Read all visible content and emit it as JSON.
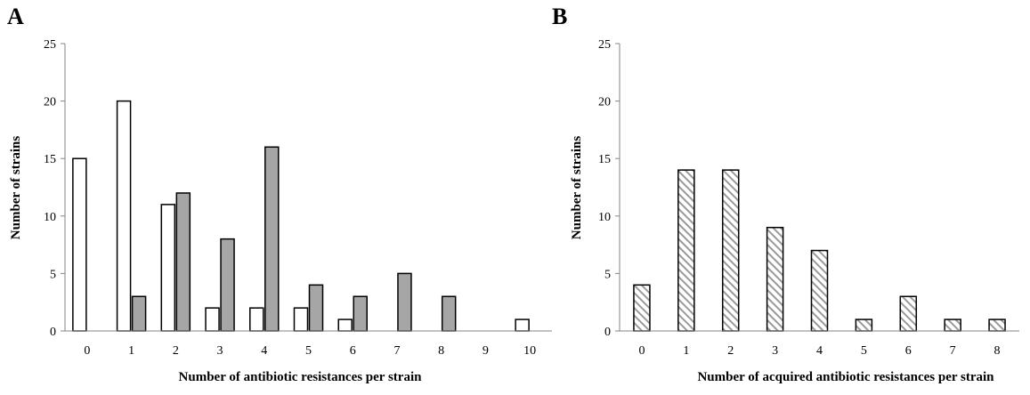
{
  "chart_data": [
    {
      "panel_label": "A",
      "type": "bar",
      "xlabel": "Number of antibiotic resistances per strain",
      "ylabel": "Number of strains",
      "categories": [
        "0",
        "1",
        "2",
        "3",
        "4",
        "5",
        "6",
        "7",
        "8",
        "9",
        "10"
      ],
      "ylim": [
        0,
        25
      ],
      "yticks": [
        "0",
        "5",
        "10",
        "15",
        "20",
        "25"
      ],
      "series": [
        {
          "values": [
            15,
            20,
            11,
            2,
            2,
            2,
            1,
            0,
            0,
            0,
            1
          ],
          "fill": "#ffffff",
          "pattern": "solid"
        },
        {
          "values": [
            0,
            3,
            12,
            8,
            16,
            4,
            3,
            5,
            3,
            0,
            0
          ],
          "fill": "#a6a6a6",
          "pattern": "solid"
        }
      ],
      "grid": false
    },
    {
      "panel_label": "B",
      "type": "bar",
      "xlabel": "Number of acquired antibiotic resistances per strain",
      "ylabel": "Number of strains",
      "categories": [
        "0",
        "1",
        "2",
        "3",
        "4",
        "5",
        "6",
        "7",
        "8"
      ],
      "ylim": [
        0,
        25
      ],
      "yticks": [
        "0",
        "5",
        "10",
        "15",
        "20",
        "25"
      ],
      "series": [
        {
          "values": [
            4,
            14,
            14,
            9,
            7,
            1,
            3,
            1,
            1
          ],
          "fill": "#9a9a9a",
          "pattern": "diagonal-hatch"
        }
      ],
      "grid": false
    }
  ]
}
